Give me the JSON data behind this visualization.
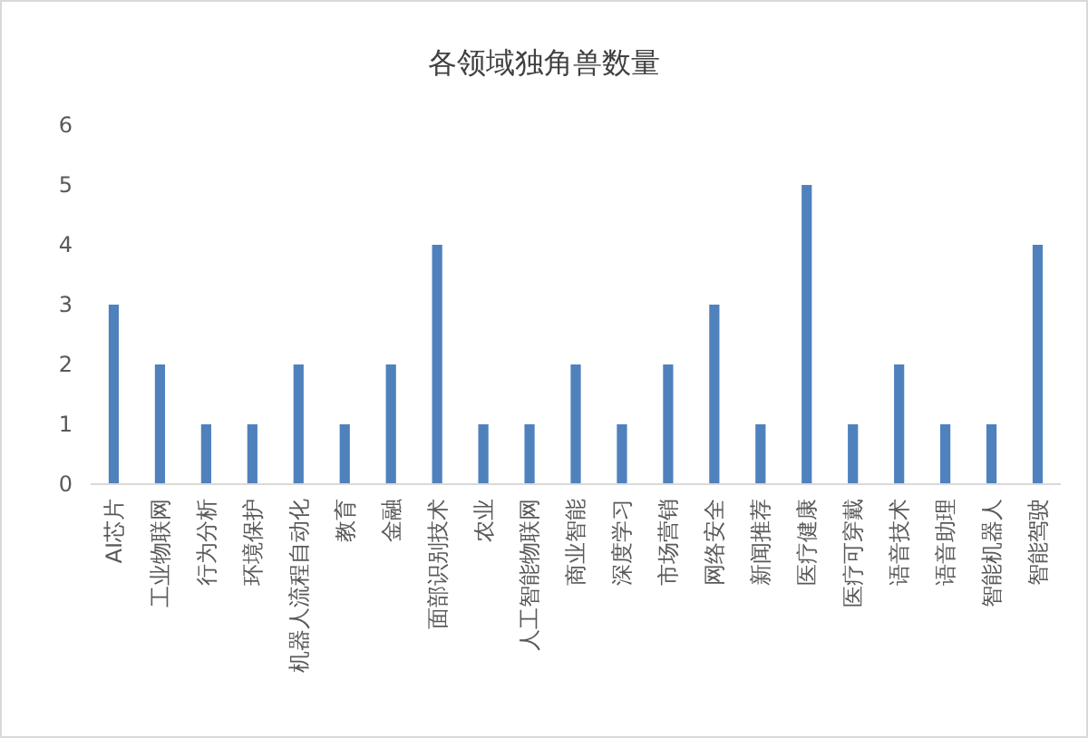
{
  "chart_data": {
    "type": "bar",
    "title": "各领域独角兽数量",
    "categories": [
      "AI芯片",
      "工业物联网",
      "行为分析",
      "环境保护",
      "机器人流程自动化",
      "教育",
      "金融",
      "面部识别技术",
      "农业",
      "人工智能物联网",
      "商业智能",
      "深度学习",
      "市场营销",
      "网络安全",
      "新闻推荐",
      "医疗健康",
      "医疗可穿戴",
      "语音技术",
      "语音助理",
      "智能机器人",
      "智能驾驶"
    ],
    "values": [
      3,
      2,
      1,
      1,
      2,
      1,
      2,
      4,
      1,
      1,
      2,
      1,
      2,
      3,
      1,
      5,
      1,
      2,
      1,
      1,
      4
    ],
    "color": "#4f81bd",
    "ylim": [
      0,
      6
    ],
    "yticks": [
      0,
      1,
      2,
      3,
      4,
      5,
      6
    ],
    "grid": false
  }
}
